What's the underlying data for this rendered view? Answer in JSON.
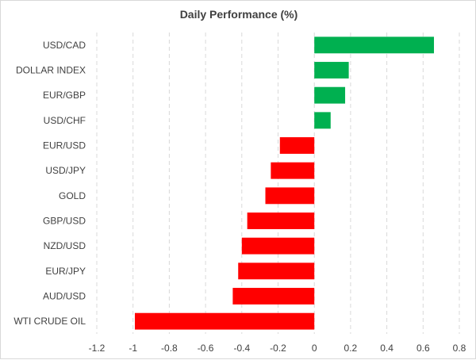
{
  "chart_data": {
    "type": "bar",
    "orientation": "horizontal",
    "title": "Daily Performance (%)",
    "xlabel": "",
    "ylabel": "",
    "xlim": [
      -1.2,
      0.8
    ],
    "ticks": [
      -1.2,
      -1,
      -0.8,
      -0.6,
      -0.4,
      -0.2,
      0,
      0.2,
      0.4,
      0.6,
      0.8
    ],
    "tick_labels": [
      "-1.2",
      "-1",
      "-0.8",
      "-0.6",
      "-0.4",
      "-0.2",
      "0",
      "0.2",
      "0.4",
      "0.6",
      "0.8"
    ],
    "grid": true,
    "legend": "none",
    "categories": [
      "USD/CAD",
      "DOLLAR INDEX",
      "EUR/GBP",
      "USD/CHF",
      "EUR/USD",
      "USD/JPY",
      "GOLD",
      "GBP/USD",
      "NZD/USD",
      "EUR/JPY",
      "AUD/USD",
      "WTI CRUDE OIL"
    ],
    "values": [
      0.66,
      0.19,
      0.17,
      0.09,
      -0.19,
      -0.24,
      -0.27,
      -0.37,
      -0.4,
      -0.42,
      -0.45,
      -0.99
    ],
    "positive_color": "#00b050",
    "negative_color": "#ff0000"
  }
}
